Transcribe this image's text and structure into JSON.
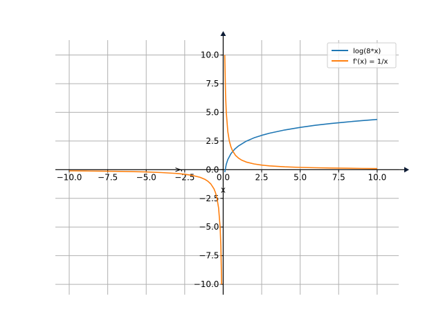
{
  "chart_data": {
    "type": "line",
    "title": "",
    "xlabel": "x",
    "ylabel": "y",
    "xlim": [
      -10.9,
      11.4
    ],
    "ylim": [
      -10.9,
      11.3
    ],
    "grid": true,
    "legend_position": "top-right",
    "xticks": [
      -10.0,
      -7.5,
      -5.0,
      -2.5,
      0.0,
      2.5,
      5.0,
      7.5,
      10.0
    ],
    "yticks": [
      -10.0,
      -7.5,
      -5.0,
      -2.5,
      0.0,
      2.5,
      5.0,
      7.5,
      10.0
    ],
    "xtick_labels": [
      "−10.0",
      "−7.5",
      "−5.0",
      "−2.5",
      "0.0",
      "2.5",
      "5.0",
      "7.5",
      "10.0"
    ],
    "ytick_labels": [
      "−10.0",
      "−7.5",
      "−5.0",
      "−2.5",
      "0.0",
      "2.5",
      "5.0",
      "7.5",
      "10.0"
    ],
    "series": [
      {
        "name": "log(8*x)",
        "color": "#1f77b4",
        "x": [
          0.1,
          0.2,
          0.3,
          0.5,
          0.75,
          1,
          1.5,
          2,
          2.5,
          3,
          4,
          5,
          6,
          7,
          8,
          9,
          10
        ],
        "y": [
          -0.223,
          0.47,
          0.875,
          1.386,
          1.792,
          2.079,
          2.485,
          2.773,
          2.996,
          3.178,
          3.466,
          3.689,
          3.871,
          4.025,
          4.159,
          4.277,
          4.382
        ]
      },
      {
        "name": "f'(x) = 1/x",
        "color": "#ff7f0e",
        "segments": [
          {
            "x": [
              -10,
              -9,
              -8,
              -7,
              -6,
              -5,
              -4,
              -3,
              -2.5,
              -2,
              -1.5,
              -1.2,
              -1,
              -0.8,
              -0.6,
              -0.5,
              -0.4,
              -0.3,
              -0.2,
              -0.15,
              -0.1
            ],
            "y": [
              -0.1,
              -0.111,
              -0.125,
              -0.143,
              -0.167,
              -0.2,
              -0.25,
              -0.333,
              -0.4,
              -0.5,
              -0.667,
              -0.833,
              -1,
              -1.25,
              -1.667,
              -2,
              -2.5,
              -3.333,
              -5,
              -6.667,
              -10
            ]
          },
          {
            "x": [
              0.1,
              0.15,
              0.2,
              0.3,
              0.4,
              0.5,
              0.6,
              0.8,
              1,
              1.2,
              1.5,
              2,
              2.5,
              3,
              4,
              5,
              6,
              7,
              8,
              9,
              10
            ],
            "y": [
              10,
              6.667,
              5,
              3.333,
              2.5,
              2,
              1.667,
              1.25,
              1,
              0.833,
              0.667,
              0.5,
              0.4,
              0.333,
              0.25,
              0.2,
              0.167,
              0.143,
              0.125,
              0.111,
              0.1
            ]
          }
        ]
      }
    ]
  }
}
